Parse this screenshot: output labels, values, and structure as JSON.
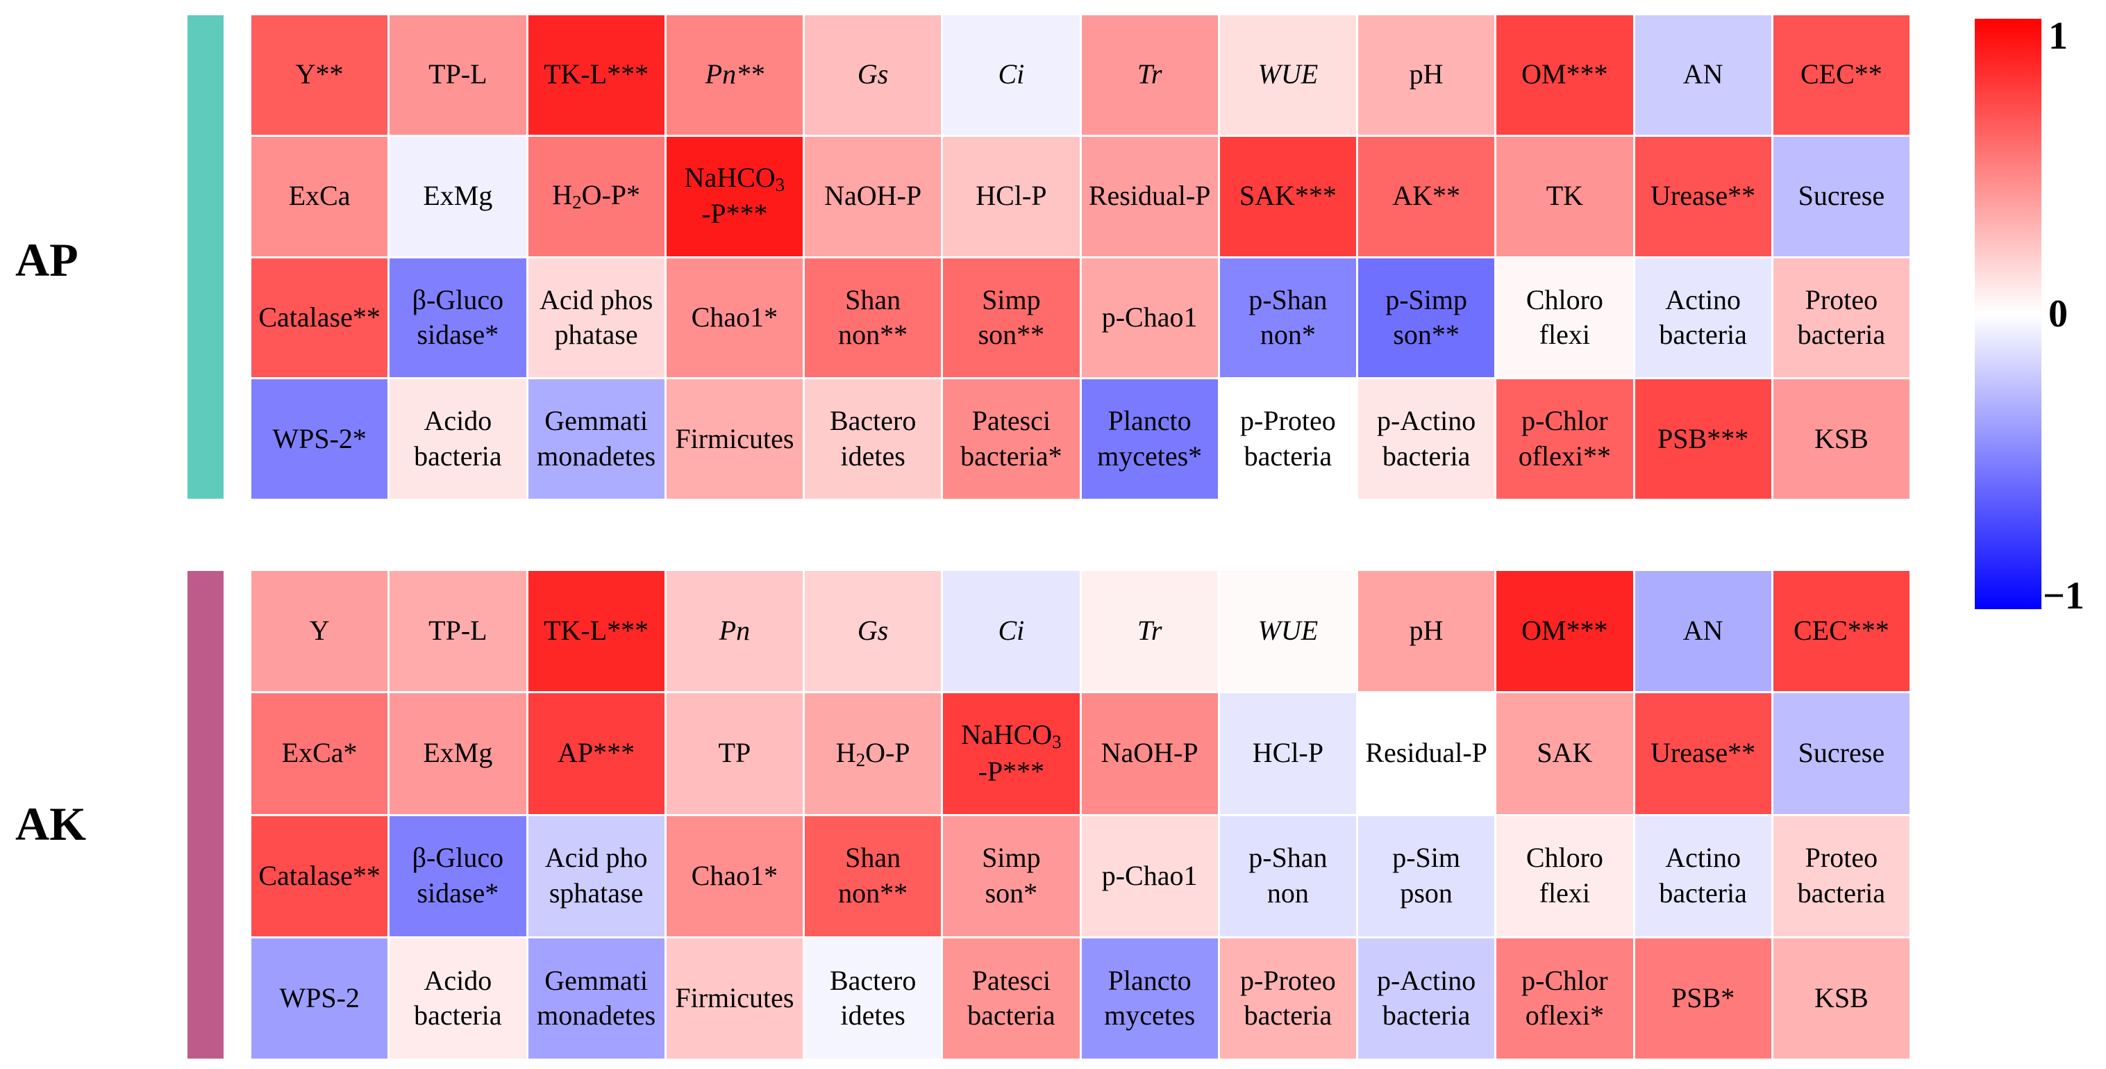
{
  "chart_data": {
    "type": "heatmap",
    "colorbar": {
      "ticks": [
        "1",
        "0",
        "−1"
      ],
      "colors": {
        "max": "#ff0000",
        "mid": "#ffffff",
        "min": "#0000ff"
      },
      "range": [
        -1,
        1
      ]
    },
    "panels": [
      {
        "name": "AP",
        "bar_color": "#5ecbbb",
        "rows": [
          [
            {
              "lines": [
                "Y**"
              ],
              "value": 0.64
            },
            {
              "lines": [
                "TP-L"
              ],
              "value": 0.42
            },
            {
              "lines": [
                "TK-L***"
              ],
              "value": 0.86
            },
            {
              "lines": [
                "Pn**"
              ],
              "value": 0.48,
              "italic": true
            },
            {
              "lines": [
                "Gs"
              ],
              "value": 0.26,
              "italic": true
            },
            {
              "lines": [
                "Ci"
              ],
              "value": -0.06,
              "italic": true
            },
            {
              "lines": [
                "Tr"
              ],
              "value": 0.4,
              "italic": true
            },
            {
              "lines": [
                "WUE"
              ],
              "value": 0.13,
              "italic": true
            },
            {
              "lines": [
                "pH"
              ],
              "value": 0.3
            },
            {
              "lines": [
                "OM***"
              ],
              "value": 0.74
            },
            {
              "lines": [
                "AN"
              ],
              "value": -0.2
            },
            {
              "lines": [
                "CEC**"
              ],
              "value": 0.68
            }
          ],
          [
            {
              "lines": [
                "ExCa"
              ],
              "value": 0.44
            },
            {
              "lines": [
                "ExMg"
              ],
              "value": -0.06
            },
            {
              "lines": [
                "H2O-P*"
              ],
              "value": 0.53
            },
            {
              "lines": [
                "NaHCO3",
                "-P***"
              ],
              "value": 0.9
            },
            {
              "lines": [
                "NaOH-P"
              ],
              "value": 0.35
            },
            {
              "lines": [
                "HCl-P"
              ],
              "value": 0.23
            },
            {
              "lines": [
                "Residual-P"
              ],
              "value": 0.38
            },
            {
              "lines": [
                "SAK***"
              ],
              "value": 0.76
            },
            {
              "lines": [
                "AK**"
              ],
              "value": 0.6
            },
            {
              "lines": [
                "TK"
              ],
              "value": 0.42
            },
            {
              "lines": [
                "Urease**"
              ],
              "value": 0.68
            },
            {
              "lines": [
                "Sucrese"
              ],
              "value": -0.26
            }
          ],
          [
            {
              "lines": [
                "Catalase**"
              ],
              "value": 0.66
            },
            {
              "lines": [
                "β-Gluco",
                "sidase*"
              ],
              "value": -0.5
            },
            {
              "lines": [
                "Acid phos",
                "phatase"
              ],
              "value": 0.15
            },
            {
              "lines": [
                "Chao1*"
              ],
              "value": 0.44
            },
            {
              "lines": [
                "Shan",
                "non**"
              ],
              "value": 0.56
            },
            {
              "lines": [
                "Simp",
                "son**"
              ],
              "value": 0.58
            },
            {
              "lines": [
                "p-Chao1"
              ],
              "value": 0.35
            },
            {
              "lines": [
                "p-Shan",
                "non*"
              ],
              "value": -0.48
            },
            {
              "lines": [
                "p-Simp",
                "son**"
              ],
              "value": -0.56
            },
            {
              "lines": [
                "Chloro",
                "flexi"
              ],
              "value": 0.03
            },
            {
              "lines": [
                "Actino",
                "bacteria"
              ],
              "value": -0.1
            },
            {
              "lines": [
                "Proteo",
                "bacteria"
              ],
              "value": 0.25
            }
          ],
          [
            {
              "lines": [
                "WPS-2*"
              ],
              "value": -0.5
            },
            {
              "lines": [
                "Acido",
                "bacteria"
              ],
              "value": 0.1
            },
            {
              "lines": [
                "Gemmati",
                "monadetes"
              ],
              "value": -0.32
            },
            {
              "lines": [
                "Firmicutes"
              ],
              "value": 0.32
            },
            {
              "lines": [
                "Bactero",
                "idetes"
              ],
              "value": 0.2
            },
            {
              "lines": [
                "Patesci",
                "bacteria*"
              ],
              "value": 0.46
            },
            {
              "lines": [
                "Plancto",
                "mycetes*"
              ],
              "value": -0.52
            },
            {
              "lines": [
                "p-Proteo",
                "bacteria"
              ],
              "value": 0.0
            },
            {
              "lines": [
                "p-Actino",
                "bacteria"
              ],
              "value": 0.1
            },
            {
              "lines": [
                "p-Chlor",
                "oflexi**"
              ],
              "value": 0.62
            },
            {
              "lines": [
                "PSB***"
              ],
              "value": 0.72
            },
            {
              "lines": [
                "KSB"
              ],
              "value": 0.4
            }
          ]
        ]
      },
      {
        "name": "AK",
        "bar_color": "#bf5b8b",
        "rows": [
          [
            {
              "lines": [
                "Y"
              ],
              "value": 0.38
            },
            {
              "lines": [
                "TP-L"
              ],
              "value": 0.33
            },
            {
              "lines": [
                "TK-L***"
              ],
              "value": 0.85
            },
            {
              "lines": [
                "Pn"
              ],
              "value": 0.22,
              "italic": true
            },
            {
              "lines": [
                "Gs"
              ],
              "value": 0.18,
              "italic": true
            },
            {
              "lines": [
                "Ci"
              ],
              "value": -0.1,
              "italic": true
            },
            {
              "lines": [
                "Tr"
              ],
              "value": 0.06,
              "italic": true
            },
            {
              "lines": [
                "WUE"
              ],
              "value": 0.02,
              "italic": true
            },
            {
              "lines": [
                "pH"
              ],
              "value": 0.36
            },
            {
              "lines": [
                "OM***"
              ],
              "value": 0.86
            },
            {
              "lines": [
                "AN"
              ],
              "value": -0.32
            },
            {
              "lines": [
                "CEC***"
              ],
              "value": 0.74
            }
          ],
          [
            {
              "lines": [
                "ExCa*"
              ],
              "value": 0.54
            },
            {
              "lines": [
                "ExMg"
              ],
              "value": 0.4
            },
            {
              "lines": [
                "AP***"
              ],
              "value": 0.76
            },
            {
              "lines": [
                "TP"
              ],
              "value": 0.26
            },
            {
              "lines": [
                "H2O-P"
              ],
              "value": 0.34
            },
            {
              "lines": [
                "NaHCO3",
                "-P***"
              ],
              "value": 0.76
            },
            {
              "lines": [
                "NaOH-P"
              ],
              "value": 0.46
            },
            {
              "lines": [
                "HCl-P"
              ],
              "value": -0.1
            },
            {
              "lines": [
                "Residual-P"
              ],
              "value": 0.0
            },
            {
              "lines": [
                "SAK"
              ],
              "value": 0.36
            },
            {
              "lines": [
                "Urease**"
              ],
              "value": 0.7
            },
            {
              "lines": [
                "Sucrese"
              ],
              "value": -0.26
            }
          ],
          [
            {
              "lines": [
                "Catalase**"
              ],
              "value": 0.7
            },
            {
              "lines": [
                "β-Gluco",
                "sidase*"
              ],
              "value": -0.5
            },
            {
              "lines": [
                "Acid pho",
                "sphatase"
              ],
              "value": -0.2
            },
            {
              "lines": [
                "Chao1*"
              ],
              "value": 0.44
            },
            {
              "lines": [
                "Shan",
                "non**"
              ],
              "value": 0.64
            },
            {
              "lines": [
                "Simp",
                "son*"
              ],
              "value": 0.4
            },
            {
              "lines": [
                "p-Chao1"
              ],
              "value": 0.14
            },
            {
              "lines": [
                "p-Shan",
                "non"
              ],
              "value": -0.12
            },
            {
              "lines": [
                "p-Sim",
                "pson"
              ],
              "value": -0.12
            },
            {
              "lines": [
                "Chloro",
                "flexi"
              ],
              "value": 0.08
            },
            {
              "lines": [
                "Actino",
                "bacteria"
              ],
              "value": -0.1
            },
            {
              "lines": [
                "Proteo",
                "bacteria"
              ],
              "value": 0.18
            }
          ],
          [
            {
              "lines": [
                "WPS-2"
              ],
              "value": -0.38
            },
            {
              "lines": [
                "Acido",
                "bacteria"
              ],
              "value": 0.08
            },
            {
              "lines": [
                "Gemmati",
                "monadetes"
              ],
              "value": -0.36
            },
            {
              "lines": [
                "Firmicutes"
              ],
              "value": 0.22
            },
            {
              "lines": [
                "Bactero",
                "idetes"
              ],
              "value": -0.04
            },
            {
              "lines": [
                "Patesci",
                "bacteria"
              ],
              "value": 0.42
            },
            {
              "lines": [
                "Plancto",
                "mycetes"
              ],
              "value": -0.42
            },
            {
              "lines": [
                "p-Proteo",
                "bacteria"
              ],
              "value": 0.3
            },
            {
              "lines": [
                "p-Actino",
                "bacteria"
              ],
              "value": -0.2
            },
            {
              "lines": [
                "p-Chlor",
                "oflexi*"
              ],
              "value": 0.5
            },
            {
              "lines": [
                "PSB*"
              ],
              "value": 0.52
            },
            {
              "lines": [
                "KSB"
              ],
              "value": 0.3
            }
          ]
        ]
      }
    ]
  }
}
